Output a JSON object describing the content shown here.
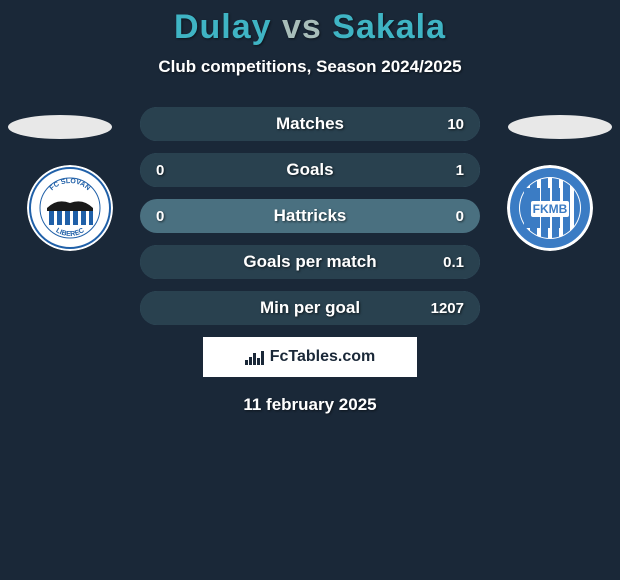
{
  "colors": {
    "background": "#1a2838",
    "text_white": "#ffffff",
    "title_player1": "#3fb4c4",
    "title_vs": "#a8bdb9",
    "title_player2": "#3fb4c4",
    "ellipse": "#e8e8e8",
    "stat_bar_bg": "#4a7080",
    "stat_fill": "#29414f",
    "brand_bg": "#ffffff",
    "brand_text": "#1a2838",
    "slovan_blue": "#2060a8",
    "fkmb_blue": "#3b7cc4",
    "slovan_white": "#ffffff",
    "fkmb_white": "#ffffff"
  },
  "title": {
    "player1": "Dulay",
    "vs": "vs",
    "player2": "Sakala",
    "fontsize": 34
  },
  "subtitle": "Club competitions, Season 2024/2025",
  "stats": [
    {
      "label": "Matches",
      "left_val": "",
      "right_val": "10",
      "left_pct": 0,
      "right_pct": 100
    },
    {
      "label": "Goals",
      "left_val": "0",
      "right_val": "1",
      "left_pct": 0,
      "right_pct": 100
    },
    {
      "label": "Hattricks",
      "left_val": "0",
      "right_val": "0",
      "left_pct": 0,
      "right_pct": 0
    },
    {
      "label": "Goals per match",
      "left_val": "",
      "right_val": "0.1",
      "left_pct": 0,
      "right_pct": 100
    },
    {
      "label": "Min per goal",
      "left_val": "",
      "right_val": "1207",
      "left_pct": 0,
      "right_pct": 100
    }
  ],
  "brand": {
    "text": "FcTables.com"
  },
  "date": "11 february 2025",
  "clubs": {
    "left": {
      "name": "FC Slovan Liberec",
      "primary": "#2060a8",
      "secondary": "#ffffff",
      "text": "FC SLOVAN LIBEREC"
    },
    "right": {
      "name": "FKMB",
      "primary": "#3b7cc4",
      "secondary": "#ffffff",
      "text": "FKMB"
    }
  }
}
